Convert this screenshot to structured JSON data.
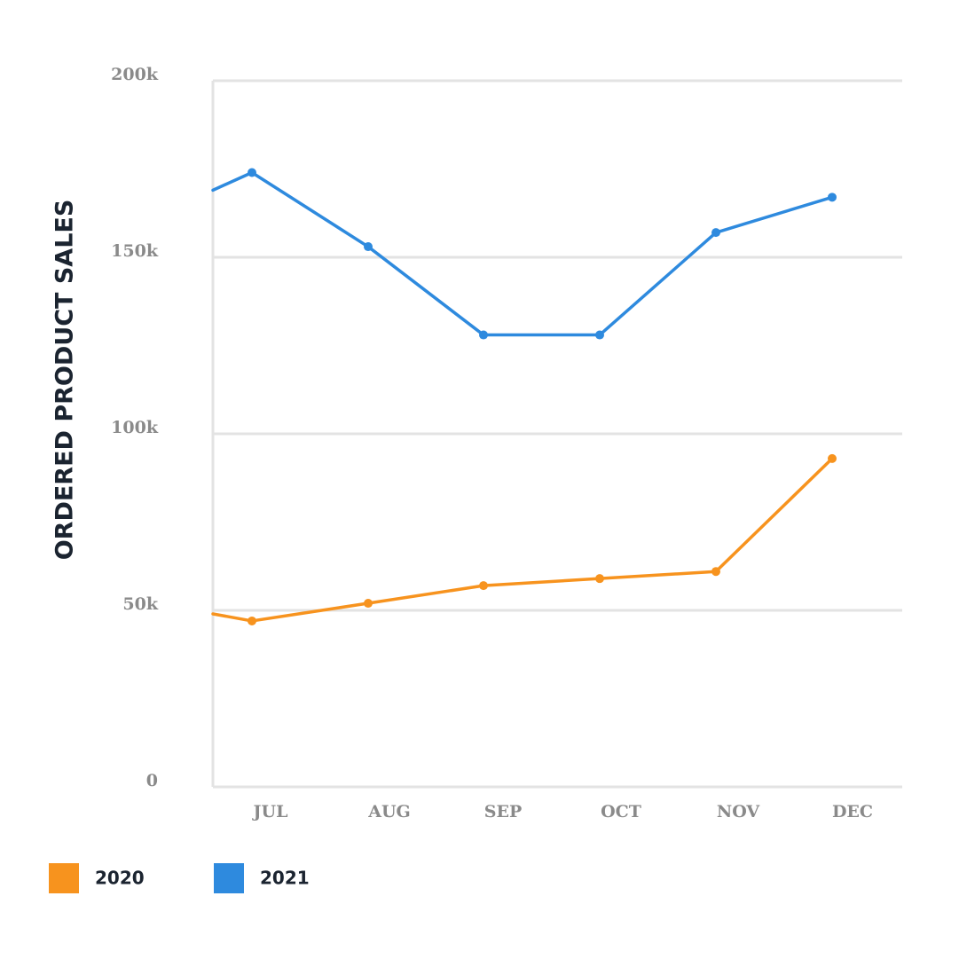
{
  "chart_data": {
    "type": "line",
    "title": "",
    "ylabel": "ORDERED PRODUCT SALES",
    "xlabel": "",
    "categories": [
      "JUL",
      "AUG",
      "SEP",
      "OCT",
      "NOV",
      "DEC"
    ],
    "yticks": [
      {
        "value": 0,
        "label": "0"
      },
      {
        "value": 50000,
        "label": "50k"
      },
      {
        "value": 100000,
        "label": "100k"
      },
      {
        "value": 150000,
        "label": "150k"
      },
      {
        "value": 200000,
        "label": "200k"
      }
    ],
    "ylim": [
      0,
      200000
    ],
    "grid": true,
    "legend_position": "bottom-left",
    "series": [
      {
        "name": "2020",
        "color": "#f7931e",
        "values": [
          47000,
          52000,
          57000,
          59000,
          61000,
          93000
        ],
        "lead_in_value": 49000
      },
      {
        "name": "2021",
        "color": "#2e8ade",
        "values": [
          174000,
          153000,
          128000,
          128000,
          157000,
          167000
        ],
        "lead_in_value": 169000
      }
    ]
  }
}
